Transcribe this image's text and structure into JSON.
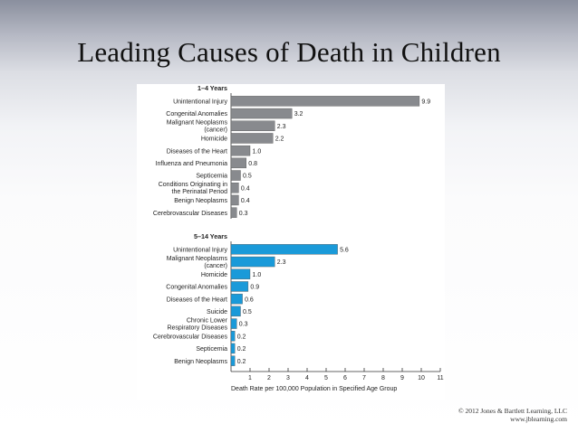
{
  "slide": {
    "title": "Leading Causes of Death in Children",
    "credit_line1": "© 2012 Jones & Bartlett Learning, LLC",
    "credit_line2": "www.jblearning.com"
  },
  "chart_data": {
    "type": "bar",
    "orientation": "horizontal",
    "xlabel": "Death Rate per 100,000 Population in Specified Age Group",
    "xlim": [
      0,
      11
    ],
    "xticks": [
      1,
      2,
      3,
      4,
      5,
      6,
      7,
      8,
      9,
      10,
      11
    ],
    "groups": [
      {
        "name": "1–4 Years",
        "color": "#888a8e",
        "categories": [
          "Unintentional Injury",
          "Congenital Anomalies",
          "Malignant Neoplasms\n(cancer)",
          "Homicide",
          "Diseases of the Heart",
          "Influenza and Pneumonia",
          "Septicemia",
          "Conditions Originating in\nthe Perinatal Period",
          "Benign Neoplasms",
          "Cerebrovascular Diseases"
        ],
        "values": [
          9.9,
          3.2,
          2.3,
          2.2,
          1.0,
          0.8,
          0.5,
          0.4,
          0.4,
          0.3
        ],
        "value_labels": [
          "9.9",
          "3.2",
          "2.3",
          "2.2",
          "1.0",
          "0.8",
          "0.5",
          "0.4",
          "0.4",
          "0.3"
        ]
      },
      {
        "name": "5–14 Years",
        "color": "#1a9ad9",
        "categories": [
          "Unintentional Injury",
          "Malignant Neoplasms\n(cancer)",
          "Homicide",
          "Congenital Anomalies",
          "Diseases of the Heart",
          "Suicide",
          "Chronic Lower\nRespiratory Diseases",
          "Cerebrovascular Diseases",
          "Septicemia",
          "Benign Neoplasms"
        ],
        "values": [
          5.6,
          2.3,
          1.0,
          0.9,
          0.6,
          0.5,
          0.3,
          0.2,
          0.2,
          0.2
        ],
        "value_labels": [
          "5.6",
          "2.3",
          "1.0",
          "0.9",
          "0.6",
          "0.5",
          "0.3",
          "0.2",
          "0.2",
          "0.2"
        ]
      }
    ]
  }
}
